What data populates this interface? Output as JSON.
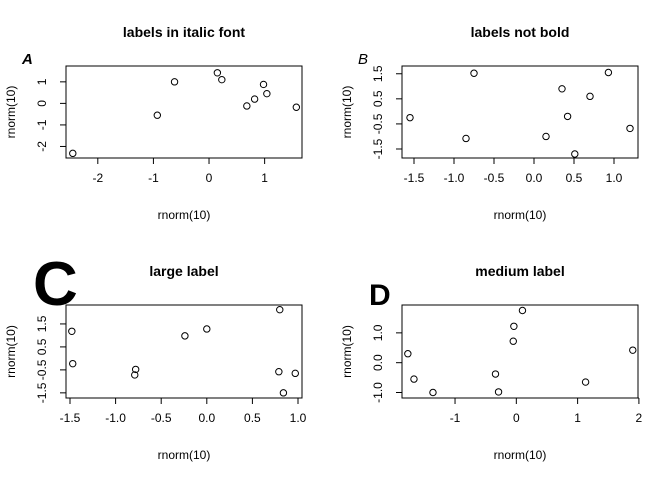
{
  "chart_data": [
    {
      "type": "scatter",
      "title": "labels in italic font",
      "panel_label": "A",
      "label_style": "bold-italic-small",
      "xlabel": "rnorm(10)",
      "ylabel": "rnorm(10)",
      "xlim": [
        -2.5,
        1.6
      ],
      "ylim": [
        -2.35,
        1.55
      ],
      "x_ticks": [
        "-2",
        "-1",
        "0",
        "1"
      ],
      "y_ticks": [
        "-2",
        "-1",
        "0",
        "1"
      ],
      "x": [
        -2.45,
        -0.93,
        -0.62,
        0.15,
        0.23,
        0.68,
        0.82,
        0.98,
        1.04,
        1.57
      ],
      "y": [
        -2.32,
        -0.55,
        1.0,
        1.42,
        1.1,
        -0.12,
        0.2,
        0.88,
        0.45,
        -0.18
      ],
      "grid": false
    },
    {
      "type": "scatter",
      "title": "labels not bold",
      "panel_label": "B",
      "label_style": "plain-italic-small",
      "xlabel": "rnorm(10)",
      "ylabel": "rnorm(10)",
      "xlim": [
        -1.6,
        1.25
      ],
      "ylim": [
        -1.7,
        1.65
      ],
      "x_ticks": [
        "-1.5",
        "-1.0",
        "-0.5",
        "0.0",
        "0.5",
        "1.0"
      ],
      "y_ticks": [
        "-1.5",
        "-0.5",
        "0.5",
        "1.5"
      ],
      "x": [
        -1.55,
        -0.85,
        -0.75,
        0.15,
        0.35,
        0.42,
        0.51,
        0.7,
        0.93,
        1.2
      ],
      "y": [
        -0.25,
        -1.08,
        1.52,
        -1.0,
        0.9,
        -0.2,
        -1.7,
        0.6,
        1.55,
        -0.68
      ],
      "grid": false
    },
    {
      "type": "scatter",
      "title": "large label",
      "panel_label": "C",
      "label_style": "bold-huge",
      "xlabel": "rnorm(10)",
      "ylabel": "rnorm(10)",
      "xlim": [
        -1.5,
        1.0
      ],
      "ylim": [
        -1.55,
        2.15
      ],
      "x_ticks": [
        "-1.5",
        "-1.0",
        "-0.5",
        "0.0",
        "0.5",
        "1.0"
      ],
      "y_ticks": [
        "-1.5",
        "-0.5",
        "0.5",
        "1.5"
      ],
      "x": [
        -1.48,
        -1.47,
        -0.79,
        -0.78,
        -0.24,
        0.0,
        0.79,
        0.8,
        0.84,
        0.97
      ],
      "y": [
        1.18,
        -0.23,
        -0.72,
        -0.48,
        0.98,
        1.28,
        -0.58,
        2.12,
        -1.5,
        -0.65
      ],
      "grid": false
    },
    {
      "type": "scatter",
      "title": "medium label",
      "panel_label": "D",
      "label_style": "bold-large",
      "xlabel": "rnorm(10)",
      "ylabel": "rnorm(10)",
      "xlim": [
        -1.8,
        1.92
      ],
      "ylim": [
        -1.05,
        1.8
      ],
      "x_ticks": [
        "-1",
        "0",
        "1",
        "2"
      ],
      "y_ticks": [
        "-1.0",
        "0.0",
        "1.0"
      ],
      "x": [
        -1.77,
        -1.67,
        -1.36,
        -0.34,
        -0.29,
        -0.05,
        -0.04,
        0.1,
        1.13,
        1.9
      ],
      "y": [
        0.3,
        -0.55,
        -1.0,
        -0.38,
        -0.98,
        0.72,
        1.22,
        1.75,
        -0.65,
        0.42
      ],
      "grid": false
    }
  ]
}
